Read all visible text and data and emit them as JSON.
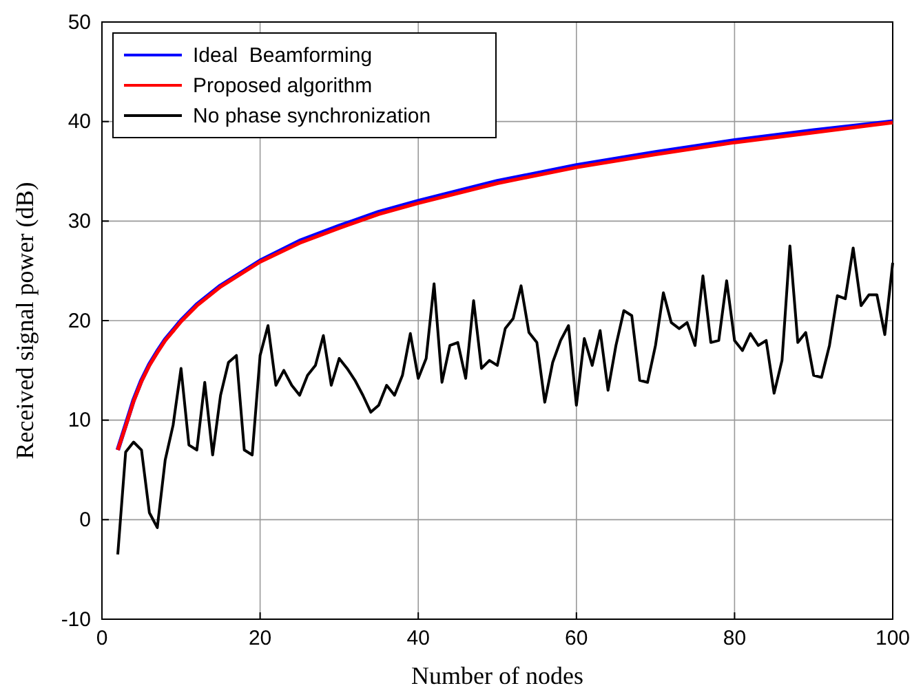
{
  "chart_data": {
    "type": "line",
    "xlabel": "Number of nodes",
    "ylabel": "Received signal power (dB)",
    "xlim": [
      0,
      100
    ],
    "ylim": [
      -10,
      50
    ],
    "xticks": [
      0,
      20,
      40,
      60,
      80,
      100
    ],
    "yticks": [
      -10,
      0,
      10,
      20,
      30,
      40,
      50
    ],
    "grid": true,
    "legend": "top left",
    "line_style": "solid",
    "marker": "none",
    "series": [
      {
        "name": "Ideal  Beamforming",
        "color": "#0000ff",
        "x": [
          2,
          3,
          4,
          5,
          6,
          7,
          8,
          10,
          12,
          15,
          20,
          25,
          30,
          35,
          40,
          50,
          60,
          70,
          80,
          90,
          100
        ],
        "values": [
          7.0,
          9.5,
          12.0,
          14.0,
          15.6,
          16.9,
          18.1,
          20.0,
          21.6,
          23.5,
          26.0,
          28.0,
          29.5,
          30.9,
          32.0,
          34.0,
          35.6,
          36.9,
          38.1,
          39.1,
          40.0
        ]
      },
      {
        "name": "Proposed algorithm",
        "color": "#ff0000",
        "x": [
          2,
          3,
          4,
          5,
          6,
          7,
          8,
          10,
          12,
          15,
          20,
          25,
          30,
          35,
          40,
          50,
          60,
          70,
          80,
          90,
          100
        ],
        "values": [
          7.0,
          9.4,
          11.9,
          13.9,
          15.5,
          16.8,
          18.0,
          19.9,
          21.5,
          23.4,
          25.9,
          27.8,
          29.3,
          30.7,
          31.8,
          33.8,
          35.4,
          36.7,
          37.9,
          38.9,
          39.9
        ]
      },
      {
        "name": "No phase synchronization",
        "color": "#000000",
        "x": [
          2,
          3,
          4,
          5,
          6,
          7,
          8,
          9,
          10,
          11,
          12,
          13,
          14,
          15,
          16,
          17,
          18,
          19,
          20,
          21,
          22,
          23,
          24,
          25,
          26,
          27,
          28,
          29,
          30,
          31,
          32,
          33,
          34,
          35,
          36,
          37,
          38,
          39,
          40,
          41,
          42,
          43,
          44,
          45,
          46,
          47,
          48,
          49,
          50,
          51,
          52,
          53,
          54,
          55,
          56,
          57,
          58,
          59,
          60,
          61,
          62,
          63,
          64,
          65,
          66,
          67,
          68,
          69,
          70,
          71,
          72,
          73,
          74,
          75,
          76,
          77,
          78,
          79,
          80,
          81,
          82,
          83,
          84,
          85,
          86,
          87,
          88,
          89,
          90,
          91,
          92,
          93,
          94,
          95,
          96,
          97,
          98,
          99,
          100
        ],
        "values": [
          -3.5,
          6.8,
          7.8,
          7.0,
          0.7,
          -0.8,
          6,
          9.5,
          15.2,
          7.5,
          7,
          13.8,
          6.5,
          12.5,
          15.8,
          16.5,
          7,
          6.5,
          16.5,
          19.5,
          13.5,
          15,
          13.5,
          12.5,
          14.5,
          15.5,
          18.5,
          13.5,
          16.2,
          15.2,
          14,
          12.5,
          10.8,
          11.5,
          13.5,
          12.5,
          14.5,
          18.7,
          14.2,
          16.2,
          23.7,
          13.8,
          17.5,
          17.8,
          14.2,
          22,
          15.2,
          16,
          15.5,
          19.2,
          20.2,
          23.5,
          18.8,
          17.8,
          11.8,
          15.8,
          18,
          19.5,
          11.5,
          18.2,
          15.5,
          19,
          13,
          17.5,
          21,
          20.5,
          14,
          13.8,
          17.5,
          22.8,
          19.8,
          19.2,
          19.8,
          17.5,
          24.5,
          17.8,
          18,
          24,
          18,
          17,
          18.7,
          17.5,
          18,
          12.7,
          16,
          27.5,
          17.8,
          18.8,
          14.5,
          14.3,
          17.5,
          22.5,
          22.2,
          27.3,
          21.5,
          22.6,
          22.6,
          18.6,
          25.8
        ]
      }
    ]
  }
}
